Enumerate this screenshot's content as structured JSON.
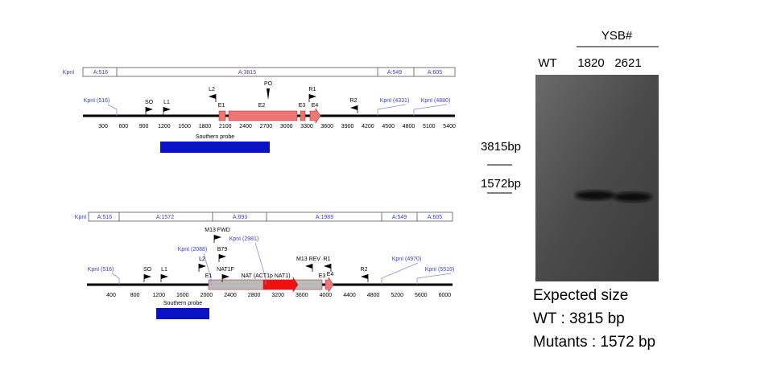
{
  "top_map": {
    "enzyme": "KpnI",
    "fragments": [
      "A:516",
      "A:3815",
      "A:549",
      "A:605"
    ],
    "features": [
      "KpnI (516)",
      "SO",
      "L1",
      "L2",
      "E1",
      "E2",
      "PO",
      "E3",
      "E4",
      "R1",
      "R2",
      "KpnI (4331)",
      "KpnI (4880)"
    ],
    "axis": [
      300,
      600,
      900,
      1200,
      1500,
      1800,
      2100,
      2400,
      2700,
      3000,
      3300,
      3600,
      3900,
      4200,
      4500,
      4800,
      5100,
      5400
    ],
    "probe": "Southern probe"
  },
  "bottom_map": {
    "enzyme": "KpnI",
    "fragments": [
      "A:516",
      "A:1572",
      "A:893",
      "A:1989",
      "A:549",
      "A:605"
    ],
    "features": [
      "KpnI (516)",
      "SO",
      "L1",
      "KpnI (2088)",
      "L2",
      "E1",
      "M13 FWD",
      "B79",
      "NAT1F",
      "KpnI (2981)",
      "NAT (ACT1p NAT1)",
      "M13 REV",
      "R1",
      "E3",
      "E4",
      "R2",
      "KpnI (4970)",
      "KpnI (5519)"
    ],
    "axis": [
      400,
      800,
      1200,
      1600,
      2000,
      2400,
      2800,
      3200,
      3600,
      4000,
      4400,
      4800,
      5200,
      5600,
      6000
    ],
    "probe": "Southern probe"
  },
  "gel": {
    "group": "YSB#",
    "lanes": [
      "WT",
      "1820",
      "2621"
    ],
    "markers": [
      "3815bp",
      "1572bp"
    ]
  },
  "expected": {
    "title": "Expected size",
    "lines": [
      "WT : 3815 bp",
      "Mutants : 1572 bp"
    ]
  }
}
